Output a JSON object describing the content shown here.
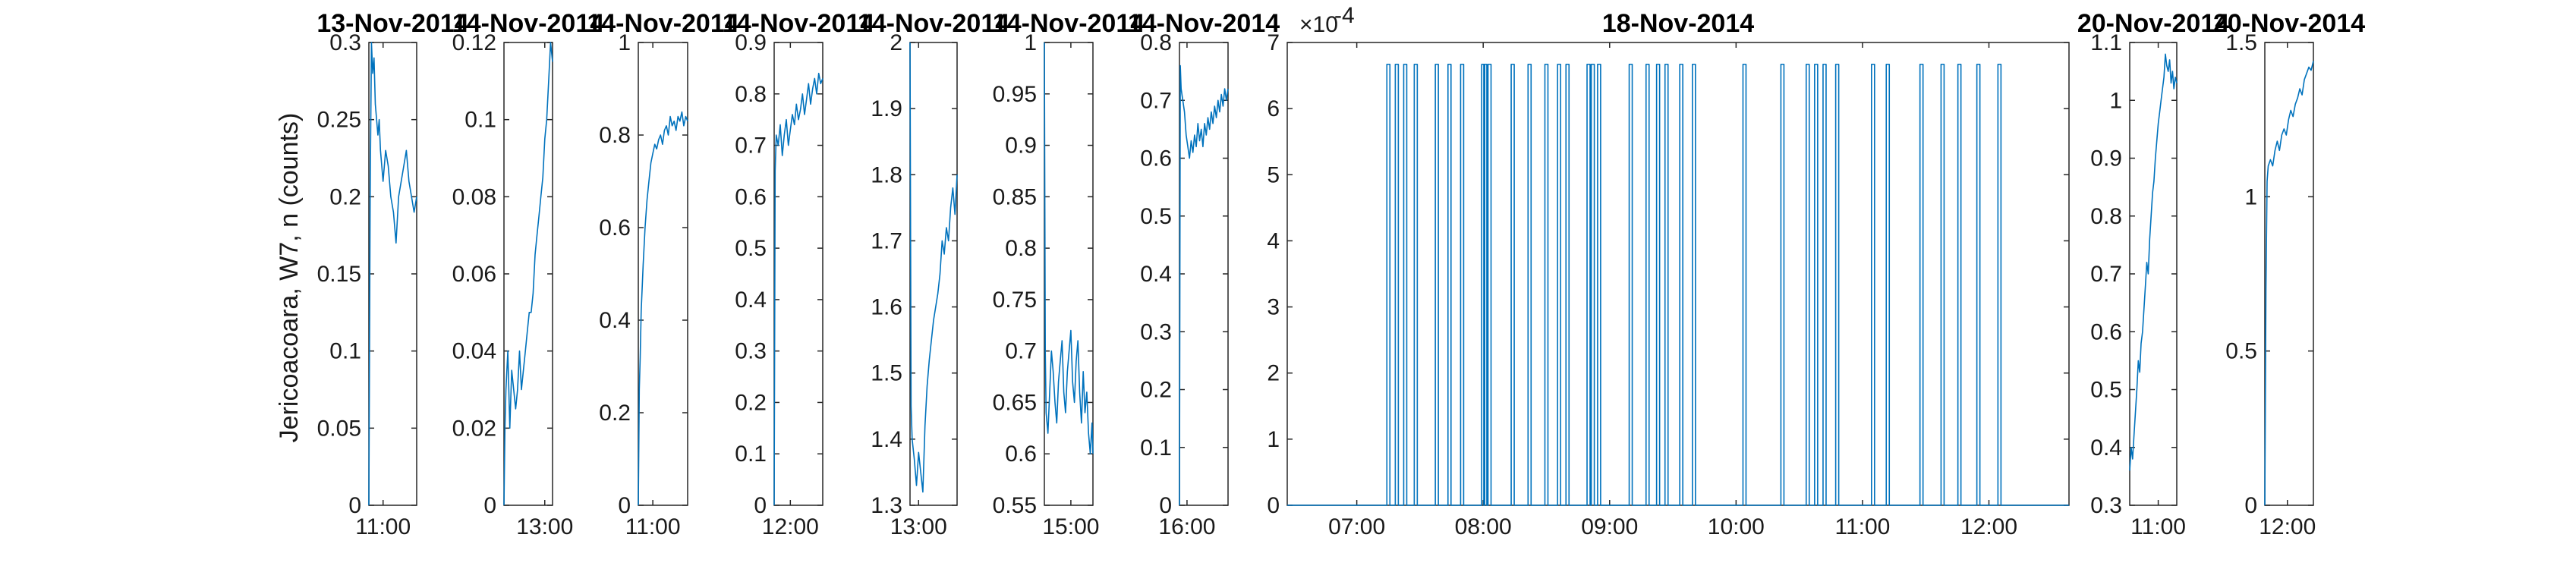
{
  "figure": {
    "ylabel": "Jericoacoara, W7, n (counts)"
  },
  "chart_data": [
    {
      "type": "line",
      "title": "13-Nov-2014",
      "ylim": [
        0,
        0.3
      ],
      "yticks": [
        0,
        0.05,
        0.1,
        0.15,
        0.2,
        0.25,
        0.3
      ],
      "ytick_labels": [
        "0",
        "0.05",
        "0.1",
        "0.15",
        "0.2",
        "0.25",
        "0.3"
      ],
      "xlim": [
        "10:49",
        "11:26"
      ],
      "xticks": [
        "11:00"
      ],
      "series": [
        {
          "x": [
            "10:49",
            "10:50",
            "10:51",
            "10:52",
            "10:53",
            "10:54",
            "10:55",
            "10:56",
            "10:57",
            "10:58",
            "10:59",
            "11:00",
            "11:02",
            "11:04",
            "11:06",
            "11:08",
            "11:10",
            "11:12",
            "11:14",
            "11:16",
            "11:18",
            "11:20",
            "11:22",
            "11:24",
            "11:26"
          ],
          "y": [
            0,
            0.2,
            0.3,
            0.28,
            0.29,
            0.26,
            0.25,
            0.24,
            0.25,
            0.23,
            0.22,
            0.21,
            0.23,
            0.22,
            0.2,
            0.19,
            0.17,
            0.2,
            0.21,
            0.22,
            0.23,
            0.21,
            0.2,
            0.19,
            0.2
          ]
        }
      ]
    },
    {
      "type": "line",
      "title": "14-Nov-2014",
      "ylim": [
        0,
        0.12
      ],
      "yticks": [
        0,
        0.02,
        0.04,
        0.06,
        0.08,
        0.1,
        0.12
      ],
      "ytick_labels": [
        "0",
        "0.02",
        "0.04",
        "0.06",
        "0.08",
        "0.1",
        "0.12"
      ],
      "xlim": [
        "12:18",
        "13:08"
      ],
      "xticks": [
        "13:00"
      ],
      "series": [
        {
          "x": [
            "12:18",
            "12:19",
            "12:20",
            "12:22",
            "12:24",
            "12:26",
            "12:28",
            "12:30",
            "12:32",
            "12:34",
            "12:36",
            "12:38",
            "12:40",
            "12:42",
            "12:44",
            "12:46",
            "12:48",
            "12:50",
            "12:52",
            "12:54",
            "12:56",
            "12:58",
            "13:00",
            "13:02",
            "13:04",
            "13:06",
            "13:08"
          ],
          "y": [
            0,
            0.02,
            0.03,
            0.04,
            0.02,
            0.035,
            0.03,
            0.025,
            0.03,
            0.04,
            0.03,
            0.035,
            0.04,
            0.045,
            0.05,
            0.05,
            0.055,
            0.065,
            0.07,
            0.075,
            0.08,
            0.085,
            0.095,
            0.1,
            0.11,
            0.12,
            0.115
          ]
        }
      ]
    },
    {
      "type": "line",
      "title": "14-Nov-2014",
      "ylim": [
        0,
        1
      ],
      "yticks": [
        0,
        0.2,
        0.4,
        0.6,
        0.8,
        1
      ],
      "ytick_labels": [
        "0",
        "0.2",
        "0.4",
        "0.6",
        "0.8",
        "1"
      ],
      "xlim": [
        "10:45",
        "11:36"
      ],
      "xticks": [
        "11:00"
      ],
      "series": [
        {
          "x": [
            "10:45",
            "10:46",
            "10:47",
            "10:48",
            "10:50",
            "10:52",
            "10:54",
            "10:56",
            "10:58",
            "11:00",
            "11:02",
            "11:04",
            "11:06",
            "11:08",
            "11:10",
            "11:12",
            "11:14",
            "11:16",
            "11:18",
            "11:20",
            "11:22",
            "11:24",
            "11:26",
            "11:28",
            "11:30",
            "11:32",
            "11:34",
            "11:36"
          ],
          "y": [
            0,
            0.25,
            0.32,
            0.42,
            0.52,
            0.6,
            0.66,
            0.7,
            0.74,
            0.76,
            0.78,
            0.77,
            0.79,
            0.8,
            0.78,
            0.81,
            0.82,
            0.8,
            0.84,
            0.82,
            0.83,
            0.81,
            0.84,
            0.83,
            0.85,
            0.82,
            0.84,
            0.83
          ]
        }
      ]
    },
    {
      "type": "line",
      "title": "14-Nov-2014",
      "ylim": [
        0,
        0.9
      ],
      "yticks": [
        0,
        0.1,
        0.2,
        0.3,
        0.4,
        0.5,
        0.6,
        0.7,
        0.8,
        0.9
      ],
      "ytick_labels": [
        "0",
        "0.1",
        "0.2",
        "0.3",
        "0.4",
        "0.5",
        "0.6",
        "0.7",
        "0.8",
        "0.9"
      ],
      "xlim": [
        "11:44",
        "12:32"
      ],
      "xticks": [
        "12:00"
      ],
      "series": [
        {
          "x": [
            "11:44",
            "11:45",
            "11:46",
            "11:48",
            "11:50",
            "11:52",
            "11:54",
            "11:56",
            "11:58",
            "12:00",
            "12:02",
            "12:04",
            "12:06",
            "12:08",
            "12:10",
            "12:12",
            "12:14",
            "12:16",
            "12:18",
            "12:20",
            "12:22",
            "12:24",
            "12:26",
            "12:28",
            "12:30",
            "12:32"
          ],
          "y": [
            0,
            0.65,
            0.72,
            0.7,
            0.74,
            0.68,
            0.72,
            0.75,
            0.7,
            0.73,
            0.76,
            0.74,
            0.78,
            0.75,
            0.77,
            0.8,
            0.76,
            0.79,
            0.82,
            0.78,
            0.81,
            0.83,
            0.8,
            0.84,
            0.82,
            0.83
          ]
        }
      ]
    },
    {
      "type": "line",
      "title": "14-Nov-2014",
      "ylim": [
        1.3,
        2
      ],
      "yticks": [
        1.3,
        1.4,
        1.5,
        1.6,
        1.7,
        1.8,
        1.9,
        2
      ],
      "ytick_labels": [
        "1.3",
        "1.4",
        "1.5",
        "1.6",
        "1.7",
        "1.8",
        "1.9",
        "2"
      ],
      "xlim": [
        "12:52",
        "13:36"
      ],
      "xticks": [
        "13:00"
      ],
      "series": [
        {
          "x": [
            "12:52",
            "12:53",
            "12:54",
            "12:56",
            "12:58",
            "13:00",
            "13:02",
            "13:04",
            "13:06",
            "13:08",
            "13:10",
            "13:12",
            "13:14",
            "13:16",
            "13:18",
            "13:20",
            "13:22",
            "13:24",
            "13:26",
            "13:28",
            "13:30",
            "13:32",
            "13:34",
            "13:36"
          ],
          "y": [
            2,
            1.45,
            1.4,
            1.37,
            1.33,
            1.38,
            1.35,
            1.32,
            1.42,
            1.48,
            1.52,
            1.55,
            1.58,
            1.6,
            1.62,
            1.65,
            1.7,
            1.68,
            1.72,
            1.7,
            1.75,
            1.78,
            1.74,
            1.8
          ]
        }
      ]
    },
    {
      "type": "line",
      "title": "14-Nov-2014",
      "ylim": [
        0.55,
        1
      ],
      "yticks": [
        0.55,
        0.6,
        0.65,
        0.7,
        0.75,
        0.8,
        0.85,
        0.9,
        0.95,
        1
      ],
      "ytick_labels": [
        "0.55",
        "0.6",
        "0.65",
        "0.7",
        "0.75",
        "0.8",
        "0.85",
        "0.9",
        "0.95",
        "1"
      ],
      "xlim": [
        "14:30",
        "15:25"
      ],
      "xticks": [
        "15:00"
      ],
      "series": [
        {
          "x": [
            "14:30",
            "14:31",
            "14:32",
            "14:34",
            "14:36",
            "14:38",
            "14:40",
            "14:42",
            "14:44",
            "14:46",
            "14:48",
            "14:50",
            "14:52",
            "14:54",
            "14:56",
            "14:58",
            "15:00",
            "15:02",
            "15:04",
            "15:06",
            "15:08",
            "15:10",
            "15:12",
            "15:14",
            "15:16",
            "15:18",
            "15:20",
            "15:22",
            "15:24",
            "15:25"
          ],
          "y": [
            1,
            0.7,
            0.64,
            0.62,
            0.66,
            0.7,
            0.68,
            0.65,
            0.63,
            0.67,
            0.69,
            0.71,
            0.66,
            0.64,
            0.68,
            0.7,
            0.72,
            0.67,
            0.65,
            0.69,
            0.71,
            0.66,
            0.63,
            0.68,
            0.64,
            0.66,
            0.62,
            0.6,
            0.63,
            0.6
          ]
        }
      ]
    },
    {
      "type": "line",
      "title": "14-Nov-2014",
      "ylim": [
        0,
        0.8
      ],
      "yticks": [
        0,
        0.1,
        0.2,
        0.3,
        0.4,
        0.5,
        0.6,
        0.7,
        0.8
      ],
      "ytick_labels": [
        "0",
        "0.1",
        "0.2",
        "0.3",
        "0.4",
        "0.5",
        "0.6",
        "0.7",
        "0.8"
      ],
      "xlim": [
        "15:51",
        "16:49"
      ],
      "xticks": [
        "16:00"
      ],
      "series": [
        {
          "x": [
            "15:51",
            "15:52",
            "15:53",
            "15:55",
            "15:57",
            "15:59",
            "16:01",
            "16:03",
            "16:05",
            "16:07",
            "16:09",
            "16:11",
            "16:13",
            "16:15",
            "16:17",
            "16:19",
            "16:21",
            "16:23",
            "16:25",
            "16:27",
            "16:29",
            "16:31",
            "16:33",
            "16:35",
            "16:37",
            "16:39",
            "16:41",
            "16:43",
            "16:45",
            "16:47",
            "16:49"
          ],
          "y": [
            0,
            0.76,
            0.72,
            0.7,
            0.68,
            0.64,
            0.62,
            0.6,
            0.63,
            0.61,
            0.64,
            0.62,
            0.66,
            0.63,
            0.65,
            0.62,
            0.66,
            0.64,
            0.67,
            0.65,
            0.68,
            0.66,
            0.69,
            0.67,
            0.7,
            0.68,
            0.71,
            0.69,
            0.72,
            0.7,
            0.72
          ]
        }
      ]
    },
    {
      "type": "line",
      "title": "18-Nov-2014",
      "ylim": [
        0,
        0.0007
      ],
      "yticks": [
        0,
        0.0001,
        0.0002,
        0.0003,
        0.0004,
        0.0005,
        0.0006,
        0.0007
      ],
      "ytick_labels": [
        "0",
        "1",
        "2",
        "3",
        "4",
        "5",
        "6",
        "7"
      ],
      "y_exponent_label": "×10",
      "y_exponent_value": "-4",
      "xlim": [
        "06:27",
        "12:38"
      ],
      "xticks": [
        "07:00",
        "08:00",
        "09:00",
        "10:00",
        "11:00",
        "12:00"
      ],
      "spike_value": 0.000667,
      "spikes": [
        "07:15",
        "07:19",
        "07:23",
        "07:28",
        "07:38",
        "07:44",
        "07:50",
        "08:00",
        "08:01",
        "08:03",
        "08:14",
        "08:22",
        "08:30",
        "08:36",
        "08:40",
        "08:50",
        "08:52",
        "08:55",
        "09:10",
        "09:18",
        "09:23",
        "09:27",
        "09:34",
        "09:40",
        "10:04",
        "10:22",
        "10:34",
        "10:38",
        "10:42",
        "10:48",
        "11:05",
        "11:12",
        "11:28",
        "11:38",
        "11:46",
        "11:55",
        "12:05"
      ]
    },
    {
      "type": "line",
      "title": "20-Nov-2014",
      "ylim": [
        0.3,
        1.1
      ],
      "yticks": [
        0.3,
        0.4,
        0.5,
        0.6,
        0.7,
        0.8,
        0.9,
        1,
        1.1
      ],
      "ytick_labels": [
        "0.3",
        "0.4",
        "0.5",
        "0.6",
        "0.7",
        "0.8",
        "0.9",
        "1",
        "1.1"
      ],
      "xlim": [
        "10:40",
        "11:13"
      ],
      "xticks": [
        "11:00"
      ],
      "series": [
        {
          "x": [
            "10:40",
            "10:41",
            "10:42",
            "10:43",
            "10:44",
            "10:45",
            "10:46",
            "10:47",
            "10:48",
            "10:49",
            "10:50",
            "10:51",
            "10:52",
            "10:53",
            "10:54",
            "10:55",
            "10:56",
            "10:57",
            "10:58",
            "10:59",
            "11:00",
            "11:01",
            "11:02",
            "11:03",
            "11:04",
            "11:05",
            "11:06",
            "11:07",
            "11:08",
            "11:09",
            "11:10",
            "11:11",
            "11:12",
            "11:13"
          ],
          "y": [
            0.36,
            0.4,
            0.38,
            0.42,
            0.46,
            0.5,
            0.55,
            0.53,
            0.58,
            0.6,
            0.64,
            0.68,
            0.72,
            0.7,
            0.76,
            0.8,
            0.84,
            0.86,
            0.9,
            0.93,
            0.96,
            0.98,
            1,
            1.02,
            1.04,
            1.08,
            1.06,
            1.05,
            1.07,
            1.03,
            1.05,
            1.02,
            1.04,
            1.03
          ]
        }
      ]
    },
    {
      "type": "line",
      "title": "20-Nov-2014",
      "ylim": [
        0,
        1.5
      ],
      "yticks": [
        0,
        0.5,
        1,
        1.5
      ],
      "ytick_labels": [
        "0",
        "0.5",
        "1",
        "1.5"
      ],
      "xlim": [
        "11:40",
        "12:23"
      ],
      "xticks": [
        "12:00"
      ],
      "series": [
        {
          "x": [
            "11:40",
            "11:41",
            "11:42",
            "11:43",
            "11:45",
            "11:47",
            "11:49",
            "11:51",
            "11:53",
            "11:55",
            "11:57",
            "11:59",
            "12:01",
            "12:03",
            "12:05",
            "12:07",
            "12:09",
            "12:11",
            "12:13",
            "12:15",
            "12:17",
            "12:19",
            "12:21",
            "12:23"
          ],
          "y": [
            0,
            0.7,
            1.05,
            1.1,
            1.12,
            1.1,
            1.15,
            1.18,
            1.15,
            1.2,
            1.22,
            1.2,
            1.25,
            1.28,
            1.26,
            1.3,
            1.32,
            1.35,
            1.33,
            1.38,
            1.4,
            1.42,
            1.41,
            1.44
          ]
        }
      ]
    }
  ]
}
